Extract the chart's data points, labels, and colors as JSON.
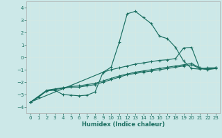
{
  "xlabel": "Humidex (Indice chaleur)",
  "xlim": [
    -0.5,
    23.5
  ],
  "ylim": [
    -4.5,
    4.5
  ],
  "xticks": [
    0,
    1,
    2,
    3,
    4,
    5,
    6,
    7,
    8,
    9,
    10,
    11,
    12,
    13,
    14,
    15,
    16,
    17,
    18,
    19,
    20,
    21,
    22,
    23
  ],
  "yticks": [
    -4,
    -3,
    -2,
    -1,
    0,
    1,
    2,
    3,
    4
  ],
  "bg_color": "#cce8e8",
  "grid_color": "#b8d8d8",
  "line_color": "#1a6e60",
  "lines": [
    {
      "x": [
        0,
        1,
        2,
        3,
        4,
        5,
        6,
        7,
        8,
        9,
        10,
        11,
        12,
        13,
        14,
        15,
        16,
        17,
        18,
        19,
        20,
        21,
        22,
        23
      ],
      "y": [
        -3.6,
        -3.2,
        -2.7,
        -2.65,
        -3.0,
        -3.05,
        -3.1,
        -3.05,
        -2.8,
        -1.2,
        -0.8,
        1.2,
        3.5,
        3.7,
        3.2,
        2.7,
        1.7,
        1.5,
        0.8,
        -0.3,
        -0.9,
        -0.95,
        -0.85,
        -0.85
      ]
    },
    {
      "x": [
        0,
        9,
        10,
        11,
        12,
        13,
        14,
        15,
        16,
        17,
        18,
        19,
        20,
        21,
        22,
        23
      ],
      "y": [
        -3.6,
        -1.2,
        -1.0,
        -0.85,
        -0.7,
        -0.55,
        -0.45,
        -0.35,
        -0.25,
        -0.2,
        -0.1,
        0.75,
        0.8,
        -0.9,
        -0.95,
        -0.85
      ]
    },
    {
      "x": [
        0,
        2,
        3,
        4,
        5,
        6,
        7,
        8,
        9,
        10,
        11,
        12,
        13,
        14,
        15,
        16,
        17,
        18,
        19,
        20,
        21,
        22,
        23
      ],
      "y": [
        -3.6,
        -2.7,
        -2.6,
        -2.5,
        -2.4,
        -2.4,
        -2.3,
        -2.2,
        -2.0,
        -1.8,
        -1.6,
        -1.4,
        -1.3,
        -1.2,
        -1.1,
        -1.0,
        -0.9,
        -0.8,
        -0.7,
        -0.6,
        -0.9,
        -1.0,
        -0.9
      ]
    },
    {
      "x": [
        0,
        2,
        3,
        4,
        5,
        6,
        7,
        8,
        9,
        10,
        11,
        12,
        13,
        14,
        15,
        16,
        17,
        18,
        19,
        20,
        21,
        22,
        23
      ],
      "y": [
        -3.6,
        -2.65,
        -2.55,
        -2.45,
        -2.35,
        -2.3,
        -2.2,
        -2.1,
        -1.9,
        -1.7,
        -1.5,
        -1.35,
        -1.2,
        -1.1,
        -1.0,
        -0.9,
        -0.8,
        -0.7,
        -0.6,
        -0.5,
        -0.85,
        -0.95,
        -0.85
      ]
    }
  ]
}
